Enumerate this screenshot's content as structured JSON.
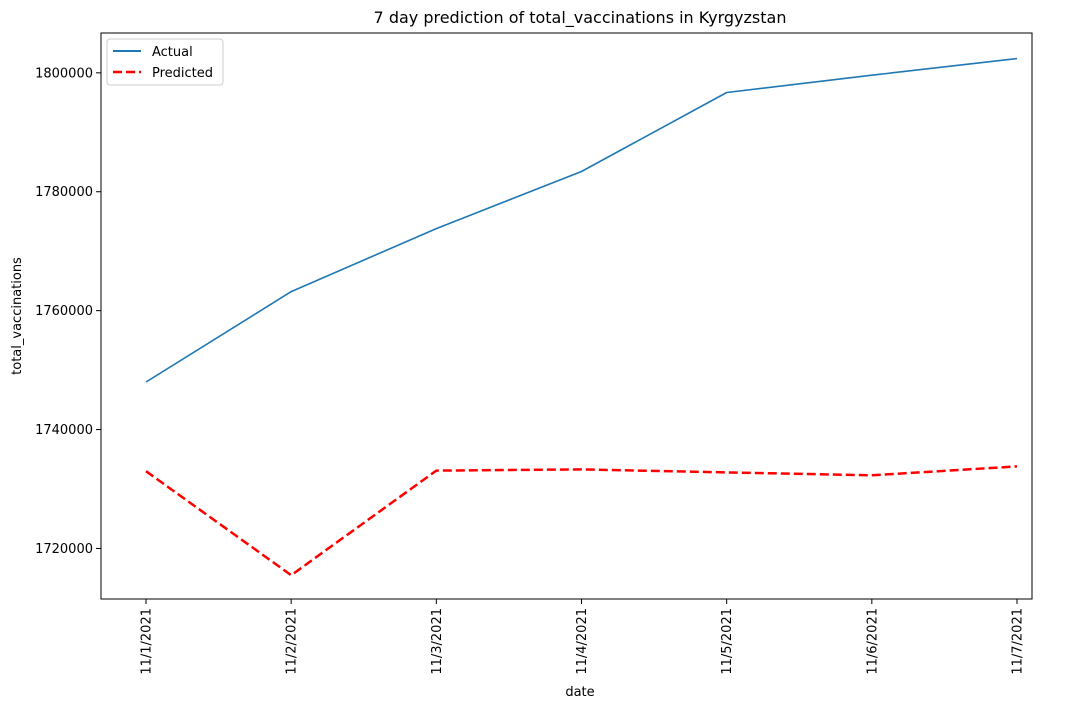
{
  "chart_data": {
    "type": "line",
    "title": "7 day prediction of total_vaccinations in Kyrgyzstan",
    "xlabel": "date",
    "ylabel": "total_vaccinations",
    "categories": [
      "11/1/2021",
      "11/2/2021",
      "11/3/2021",
      "11/4/2021",
      "11/5/2021",
      "11/6/2021",
      "11/7/2021"
    ],
    "ylim": [
      1711500,
      1806700
    ],
    "yticks": [
      1720000,
      1740000,
      1760000,
      1780000,
      1800000
    ],
    "yticks_label": [
      "1720000",
      "1740000",
      "1760000",
      "1780000",
      "1800000"
    ],
    "series": [
      {
        "name": "Actual",
        "color": "#1f77b4",
        "style": "solid",
        "values": [
          1748000,
          1763200,
          1773800,
          1783400,
          1796700,
          1799600,
          1802400
        ]
      },
      {
        "name": "Predicted",
        "color": "#ff0000",
        "style": "dashed",
        "values": [
          1733000,
          1715500,
          1733100,
          1733300,
          1732800,
          1732300,
          1733800
        ]
      }
    ],
    "legend": "upper-left",
    "grid": false
  }
}
